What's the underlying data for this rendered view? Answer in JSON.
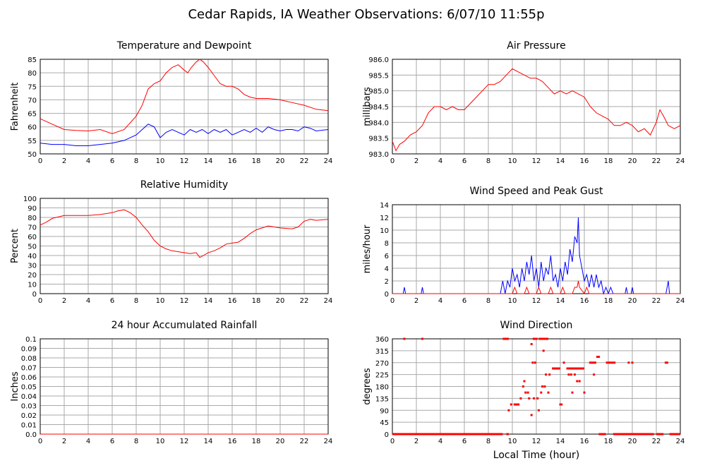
{
  "page": {
    "title": "Cedar Rapids, IA Weather Observations: 6/07/10 11:55p",
    "xlabel": "Local Time (hour)"
  },
  "colors": {
    "red": "#ff0000",
    "blue": "#0000ff",
    "grid": "#aaaaaa",
    "axis": "#000000"
  },
  "chart_data": [
    {
      "type": "line",
      "title": "Temperature and Dewpoint",
      "ylabel": "Fahrenheit",
      "xlim": [
        0,
        24
      ],
      "ylim": [
        50,
        85
      ],
      "xticks": [
        "0",
        "2",
        "4",
        "6",
        "8",
        "10",
        "12",
        "14",
        "16",
        "18",
        "20",
        "22",
        "24"
      ],
      "yticks": [
        "50",
        "55",
        "60",
        "65",
        "70",
        "75",
        "80",
        "85"
      ],
      "grid": true,
      "series": [
        {
          "color": "#ff0000",
          "x": [
            0,
            1,
            2,
            3,
            4,
            5,
            6,
            7,
            8,
            8.5,
            9,
            9.5,
            10,
            10.5,
            11,
            11.5,
            12,
            12.3,
            12.6,
            13,
            13.3,
            13.6,
            14,
            14.5,
            15,
            15.5,
            16,
            16.5,
            17,
            17.5,
            18,
            19,
            20,
            21,
            22,
            23,
            24
          ],
          "y": [
            63,
            61,
            59,
            58.7,
            58.5,
            59,
            57.5,
            59,
            64,
            68,
            74,
            76,
            77,
            80,
            82,
            83,
            81,
            80,
            82,
            84,
            85,
            84,
            82,
            79,
            76,
            75,
            75,
            74,
            72,
            71,
            70.5,
            70.5,
            70,
            69,
            68,
            66.5,
            66
          ]
        },
        {
          "color": "#0000ff",
          "x": [
            0,
            1,
            2,
            3,
            4,
            5,
            6,
            7,
            8,
            8.5,
            9,
            9.5,
            10,
            10.5,
            11,
            11.5,
            12,
            12.5,
            13,
            13.5,
            14,
            14.5,
            15,
            15.5,
            16,
            16.5,
            17,
            17.5,
            18,
            18.5,
            19,
            19.5,
            20,
            20.5,
            21,
            21.5,
            22,
            22.5,
            23,
            24
          ],
          "y": [
            54,
            53.5,
            53.5,
            53,
            53,
            53.5,
            54,
            55,
            57,
            59,
            61,
            60,
            56,
            58,
            59,
            58,
            57,
            59,
            58,
            59,
            57.5,
            59,
            58,
            59,
            57,
            58,
            59,
            58,
            59.5,
            58,
            60,
            59,
            58.5,
            59,
            59,
            58.5,
            60,
            59.5,
            58.5,
            59
          ]
        }
      ]
    },
    {
      "type": "line",
      "title": "Air Pressure",
      "ylabel": "millibars",
      "xlim": [
        0,
        24
      ],
      "ylim": [
        983.0,
        986.0
      ],
      "xticks": [
        "0",
        "2",
        "4",
        "6",
        "8",
        "10",
        "12",
        "14",
        "16",
        "18",
        "20",
        "22",
        "24"
      ],
      "yticks": [
        "983.0",
        "983.5",
        "984.0",
        "984.5",
        "985.0",
        "985.5",
        "986.0"
      ],
      "grid": true,
      "series": [
        {
          "color": "#ff0000",
          "x": [
            0,
            0.3,
            0.6,
            1,
            1.5,
            2,
            2.5,
            3,
            3.5,
            4,
            4.5,
            5,
            5.5,
            6,
            6.5,
            7,
            7.5,
            8,
            8.5,
            9,
            9.5,
            10,
            10.5,
            11,
            11.5,
            12,
            12.5,
            13,
            13.5,
            14,
            14.5,
            15,
            15.5,
            16,
            16.5,
            17,
            17.5,
            18,
            18.5,
            19,
            19.5,
            20,
            20.5,
            21,
            21.5,
            22,
            22.3,
            22.6,
            23,
            23.5,
            24
          ],
          "y": [
            983.4,
            983.1,
            983.3,
            983.4,
            983.6,
            983.7,
            983.9,
            984.3,
            984.5,
            984.5,
            984.4,
            984.5,
            984.4,
            984.4,
            984.6,
            984.8,
            985.0,
            985.2,
            985.2,
            985.3,
            985.5,
            985.7,
            985.6,
            985.5,
            985.4,
            985.4,
            985.3,
            985.1,
            984.9,
            985.0,
            984.9,
            985.0,
            984.9,
            984.8,
            984.5,
            984.3,
            984.2,
            984.1,
            983.9,
            983.9,
            984.0,
            983.9,
            983.7,
            983.8,
            983.6,
            984.0,
            984.4,
            984.2,
            983.9,
            983.8,
            983.9
          ]
        }
      ]
    },
    {
      "type": "line",
      "title": "Relative Humidity",
      "ylabel": "Percent",
      "xlim": [
        0,
        24
      ],
      "ylim": [
        0,
        100
      ],
      "xticks": [
        "0",
        "2",
        "4",
        "6",
        "8",
        "10",
        "12",
        "14",
        "16",
        "18",
        "20",
        "22",
        "24"
      ],
      "yticks": [
        "0",
        "10",
        "20",
        "30",
        "40",
        "50",
        "60",
        "70",
        "80",
        "90",
        "100"
      ],
      "grid": true,
      "series": [
        {
          "color": "#ff0000",
          "x": [
            0,
            0.5,
            1,
            2,
            3,
            4,
            5,
            6,
            6.5,
            7,
            7.5,
            8,
            8.5,
            9,
            9.5,
            10,
            10.5,
            11,
            11.5,
            12,
            12.5,
            13,
            13.3,
            13.6,
            14,
            14.5,
            15,
            15.5,
            16,
            16.5,
            17,
            17.5,
            18,
            18.5,
            19,
            20,
            21,
            21.5,
            22,
            22.5,
            23,
            24
          ],
          "y": [
            72,
            75,
            79,
            82,
            82,
            82,
            83,
            85,
            87,
            88,
            85,
            80,
            72,
            65,
            56,
            50,
            47,
            45,
            44,
            43,
            42,
            43,
            38,
            40,
            43,
            45,
            48,
            52,
            53,
            54,
            58,
            63,
            67,
            69,
            71,
            69,
            68,
            70,
            76,
            78,
            77,
            78
          ]
        }
      ]
    },
    {
      "type": "line",
      "title": "Wind Speed and Peak Gust",
      "ylabel": "miles/hour",
      "xlim": [
        0,
        24
      ],
      "ylim": [
        0,
        14
      ],
      "xticks": [
        "0",
        "2",
        "4",
        "6",
        "8",
        "10",
        "12",
        "14",
        "16",
        "18",
        "20",
        "22",
        "24"
      ],
      "yticks": [
        "0",
        "2",
        "4",
        "6",
        "8",
        "10",
        "12",
        "14"
      ],
      "grid": true,
      "series": [
        {
          "color": "#0000ff",
          "x": [
            0,
            0.9,
            1,
            1.1,
            2.4,
            2.5,
            2.6,
            9,
            9.2,
            9.4,
            9.6,
            9.8,
            10,
            10.2,
            10.4,
            10.6,
            10.8,
            11,
            11.2,
            11.4,
            11.6,
            11.8,
            12,
            12.2,
            12.4,
            12.6,
            12.8,
            13,
            13.2,
            13.4,
            13.6,
            13.8,
            14,
            14.2,
            14.4,
            14.6,
            14.8,
            15,
            15.2,
            15.4,
            15.5,
            15.6,
            15.8,
            16,
            16.2,
            16.4,
            16.6,
            16.8,
            17,
            17.2,
            17.4,
            17.6,
            17.8,
            18,
            18.2,
            18.4,
            19.4,
            19.5,
            19.6,
            19.9,
            20,
            20.1,
            22.8,
            22.9,
            23,
            23.1,
            24
          ],
          "y": [
            0,
            0,
            1,
            0,
            0,
            1,
            0,
            0,
            2,
            0,
            2,
            1,
            4,
            2,
            3,
            1,
            4,
            2,
            5,
            3,
            6,
            2,
            4,
            1,
            5,
            2,
            4,
            3,
            6,
            2,
            3,
            1,
            4,
            2,
            5,
            3,
            7,
            5,
            9,
            8,
            12,
            6,
            4,
            2,
            3,
            1,
            3,
            1,
            3,
            1,
            2,
            0,
            1,
            0,
            1,
            0,
            0,
            1,
            0,
            0,
            1,
            0,
            0,
            1,
            2,
            0,
            0
          ]
        },
        {
          "color": "#ff0000",
          "x": [
            0,
            10,
            10.2,
            10.4,
            11,
            11.2,
            11.4,
            12,
            12.2,
            12.4,
            13,
            13.2,
            13.4,
            14,
            14.2,
            14.4,
            15,
            15.2,
            15.4,
            15.5,
            15.6,
            16,
            16.2,
            16.4,
            24
          ],
          "y": [
            0,
            0,
            1,
            0,
            0,
            1,
            0,
            0,
            1,
            0,
            0,
            1,
            0,
            0,
            1,
            0,
            0,
            1,
            1,
            2,
            1,
            0,
            1,
            0,
            0
          ]
        }
      ]
    },
    {
      "type": "line",
      "title": "24 hour Accumulated Rainfall",
      "ylabel": "Inches",
      "xlim": [
        0,
        24
      ],
      "ylim": [
        0,
        0.1
      ],
      "xticks": [
        "0",
        "2",
        "4",
        "6",
        "8",
        "10",
        "12",
        "14",
        "16",
        "18",
        "20",
        "22",
        "24"
      ],
      "yticks": [
        "0.0",
        "0.01",
        "0.02",
        "0.03",
        "0.04",
        "0.05",
        "0.06",
        "0.07",
        "0.08",
        "0.09",
        "0.1"
      ],
      "grid": true,
      "series": [
        {
          "color": "#ff0000",
          "x": [
            0,
            24
          ],
          "y": [
            0,
            0
          ]
        }
      ]
    },
    {
      "type": "scatter",
      "title": "Wind Direction",
      "ylabel": "degrees",
      "xlabel": "Local Time (hour)",
      "xlim": [
        0,
        24
      ],
      "ylim": [
        0,
        360
      ],
      "xticks": [
        "0",
        "2",
        "4",
        "6",
        "8",
        "10",
        "12",
        "14",
        "16",
        "18",
        "20",
        "22",
        "24"
      ],
      "yticks": [
        "0",
        "45",
        "90",
        "135",
        "180",
        "225",
        "270",
        "315",
        "360"
      ],
      "grid": true,
      "series": [
        {
          "color": "#ff0000",
          "segments": [
            [
              0,
              9.2,
              0
            ],
            [
              9.5,
              9.7,
              0
            ],
            [
              17.2,
              17.8,
              0
            ],
            [
              18.4,
              21.8,
              0
            ],
            [
              22.0,
              22.6,
              0
            ],
            [
              23.1,
              24,
              0
            ],
            [
              9.2,
              9.7,
              360
            ],
            [
              10.1,
              10.6,
              112
            ],
            [
              12.2,
              13.0,
              360
            ],
            [
              13.3,
              14.0,
              248
            ],
            [
              14.5,
              16.0,
              248
            ],
            [
              16.4,
              17.0,
              270
            ],
            [
              17.0,
              17.3,
              292
            ],
            [
              17.8,
              18.6,
              270
            ],
            [
              22.7,
              23.0,
              270
            ],
            [
              11.7,
              12.1,
              360
            ]
          ],
          "points": [
            [
              1.0,
              360
            ],
            [
              2.5,
              360
            ],
            [
              9.7,
              90
            ],
            [
              9.9,
              112
            ],
            [
              10.7,
              135
            ],
            [
              10.9,
              180
            ],
            [
              11.0,
              200
            ],
            [
              11.1,
              157
            ],
            [
              11.3,
              157
            ],
            [
              11.4,
              135
            ],
            [
              11.6,
              72
            ],
            [
              11.6,
              340
            ],
            [
              11.7,
              270
            ],
            [
              11.8,
              135
            ],
            [
              11.9,
              270
            ],
            [
              12.1,
              135
            ],
            [
              12.2,
              90
            ],
            [
              12.4,
              157
            ],
            [
              12.5,
              180
            ],
            [
              12.6,
              315
            ],
            [
              12.7,
              180
            ],
            [
              12.8,
              225
            ],
            [
              13.0,
              157
            ],
            [
              13.1,
              225
            ],
            [
              14.0,
              112
            ],
            [
              14.1,
              112
            ],
            [
              14.3,
              270
            ],
            [
              14.7,
              225
            ],
            [
              14.9,
              225
            ],
            [
              15.0,
              157
            ],
            [
              15.2,
              225
            ],
            [
              15.4,
              200
            ],
            [
              15.6,
              200
            ],
            [
              16.0,
              157
            ],
            [
              16.8,
              225
            ],
            [
              19.7,
              270
            ],
            [
              20.0,
              270
            ]
          ]
        }
      ]
    }
  ]
}
